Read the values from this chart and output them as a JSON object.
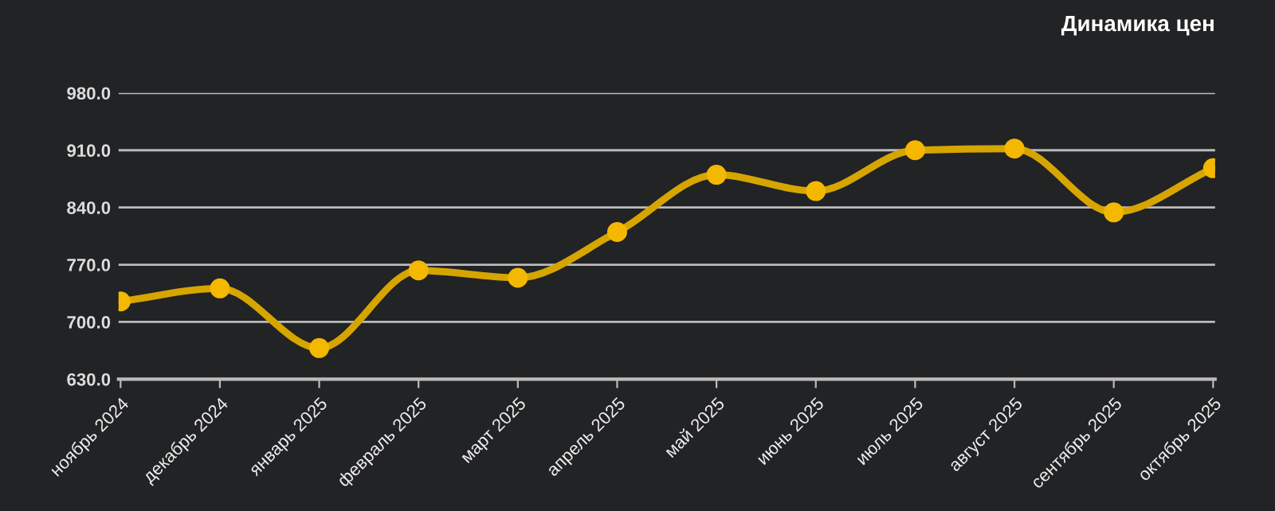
{
  "chart_data": {
    "type": "line",
    "title": "Динамика цен",
    "categories": [
      "ноябрь 2024",
      "декабрь 2024",
      "январь 2025",
      "февраль 2025",
      "март 2025",
      "апрель 2025",
      "май 2025",
      "июнь 2025",
      "июль 2025",
      "август 2025",
      "сентябрь 2025",
      "октябрь 2025"
    ],
    "series": [
      {
        "color": "#f5b800",
        "values": [
          725,
          741,
          668,
          763,
          754,
          810,
          880,
          860,
          910,
          912,
          834,
          888
        ]
      }
    ],
    "ylim": [
      630,
      980
    ],
    "yticks": [
      {
        "value": 630,
        "label": "630.0"
      },
      {
        "value": 700,
        "label": "700.0"
      },
      {
        "value": 770,
        "label": "770.0"
      },
      {
        "value": 840,
        "label": "840.0"
      },
      {
        "value": 910,
        "label": "910.0"
      },
      {
        "value": 980,
        "label": "980.0"
      }
    ],
    "grid": "y",
    "marker": "circle",
    "line_style": "solid",
    "legend": false
  }
}
